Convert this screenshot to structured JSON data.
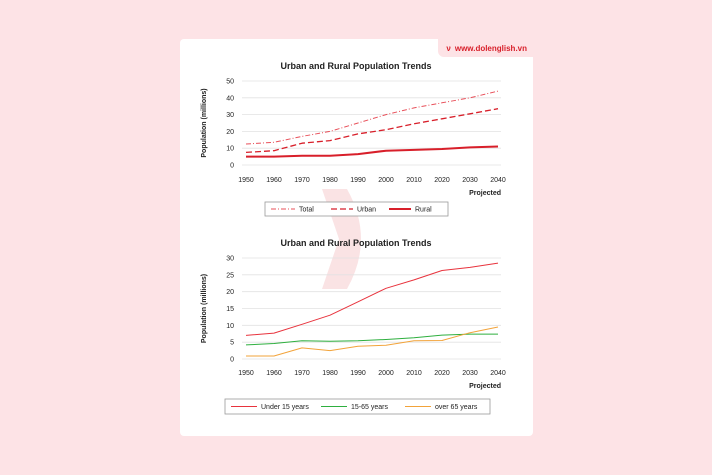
{
  "brand": {
    "text": "www.dolenglish.vn",
    "mark": "ν"
  },
  "colors": {
    "page_bg": "#fde3e6",
    "accent": "#d81f2a"
  },
  "chart_data": [
    {
      "type": "line",
      "title": "Urban and Rural Population Trends",
      "xlabel": "Projected",
      "ylabel": "Population (millions)",
      "ylim": [
        0,
        50
      ],
      "yticks": [
        0,
        10,
        20,
        30,
        40,
        50
      ],
      "x": [
        "1950",
        "1960",
        "1970",
        "1980",
        "1990",
        "2000",
        "2010",
        "2020",
        "2030",
        "2040"
      ],
      "grid": true,
      "legend_position": "bottom",
      "series": [
        {
          "name": "Total",
          "color": "#e8505a",
          "dash": "dashdot",
          "width": 1,
          "values": [
            12.5,
            13.5,
            17,
            20,
            25,
            30,
            34,
            37,
            40,
            44
          ]
        },
        {
          "name": "Urban",
          "color": "#d81f2a",
          "dash": "dash",
          "width": 1.3,
          "values": [
            7.5,
            8.5,
            13,
            14.5,
            18.5,
            21,
            24.5,
            27.5,
            30.5,
            33.5
          ]
        },
        {
          "name": "Rural",
          "color": "#d81f2a",
          "dash": "solid",
          "width": 2,
          "values": [
            5,
            5,
            5.5,
            5.5,
            6.5,
            8.5,
            9,
            9.5,
            10.5,
            11
          ]
        }
      ]
    },
    {
      "type": "line",
      "title": "Urban and Rural Population Trends",
      "xlabel": "Projected",
      "ylabel": "Population (millions)",
      "ylim": [
        0,
        30
      ],
      "yticks": [
        0,
        5,
        10,
        15,
        20,
        25,
        30
      ],
      "x": [
        "1950",
        "1960",
        "1970",
        "1980",
        "1990",
        "2000",
        "2010",
        "2020",
        "2030",
        "2040"
      ],
      "grid": true,
      "legend_position": "bottom",
      "series": [
        {
          "name": "Under 15 years",
          "color": "#e8333d",
          "dash": "solid",
          "width": 1,
          "values": [
            7,
            7.7,
            10.3,
            13,
            17,
            21,
            23.5,
            26.3,
            27.2,
            28.5
          ]
        },
        {
          "name": "15-65 years",
          "color": "#2eaf3f",
          "dash": "solid",
          "width": 1,
          "values": [
            4.2,
            4.6,
            5.4,
            5.3,
            5.4,
            5.8,
            6.3,
            7.1,
            7.4,
            7.4
          ]
        },
        {
          "name": "over 65 years",
          "color": "#f2a33a",
          "dash": "solid",
          "width": 1,
          "values": [
            0.9,
            0.9,
            3.3,
            2.5,
            3.8,
            4.1,
            5.4,
            5.5,
            7.8,
            9.5
          ]
        }
      ]
    }
  ]
}
